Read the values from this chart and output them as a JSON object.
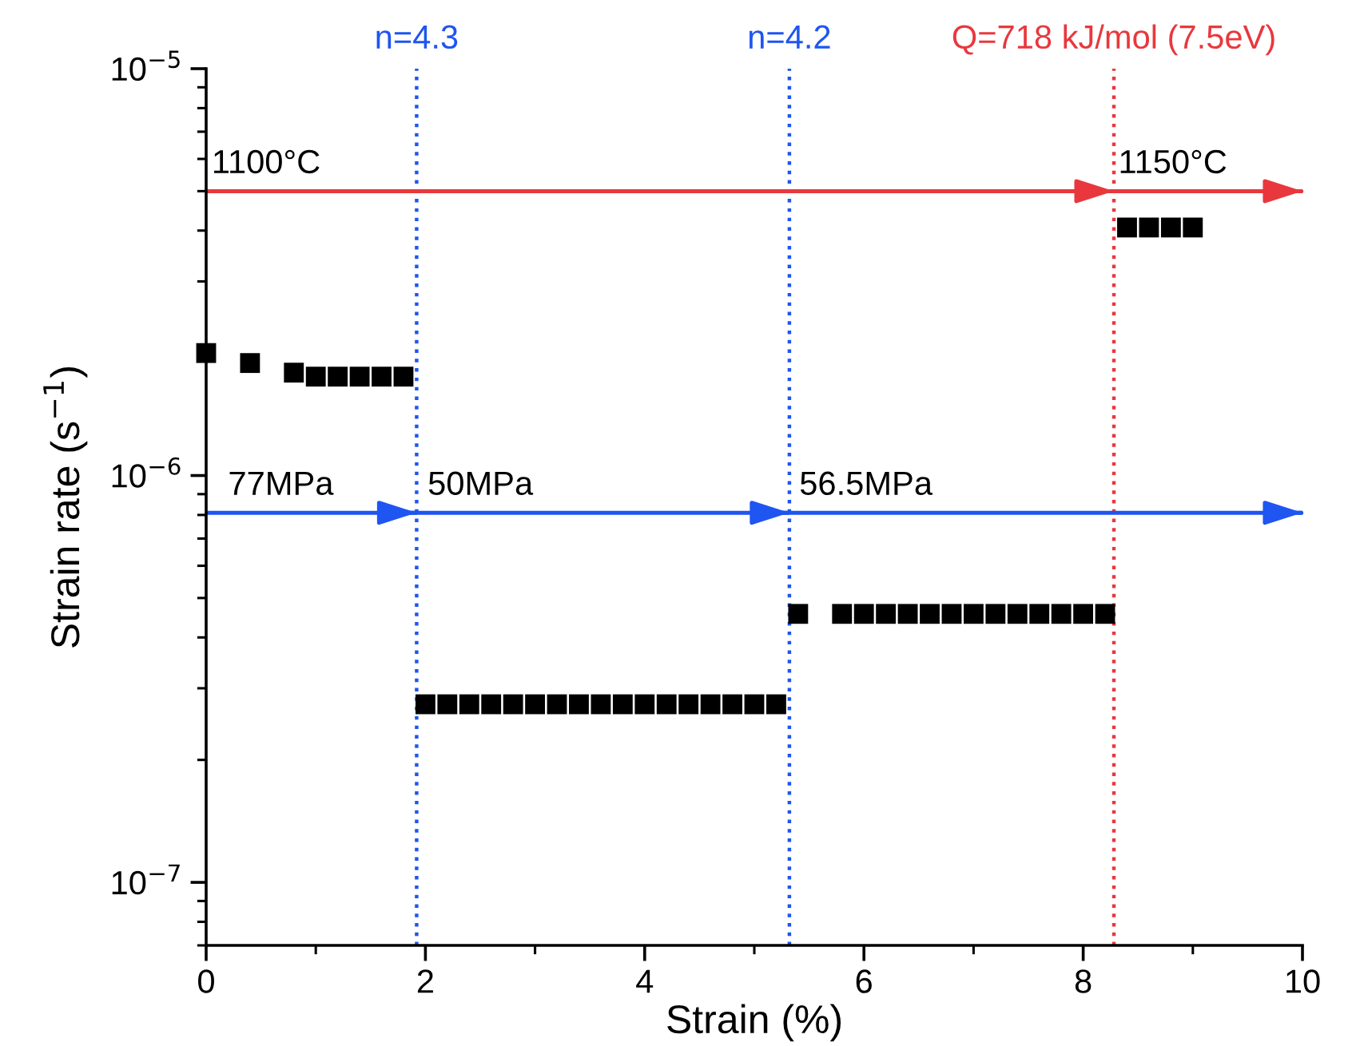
{
  "chart_data": {
    "type": "scatter",
    "xlabel": "Strain (%)",
    "ylabel": "Strain rate (s$^{−1}$)",
    "xlim": [
      0,
      10
    ],
    "xticks": [
      0,
      2,
      4,
      6,
      8,
      10
    ],
    "ylim": [
      7e-08,
      1e-05
    ],
    "log": "y",
    "yticks": [
      {
        "value": 1e-07,
        "label": "10$^{−7}$"
      },
      {
        "value": 1e-06,
        "label": "10$^{−6}$"
      },
      {
        "value": 1e-05,
        "label": "10$^{−5}$"
      }
    ],
    "grid": false,
    "legend": false,
    "marker": "square",
    "series": [
      {
        "color": "#000000",
        "x": [
          0,
          0.4,
          0.8,
          1.0,
          1.2,
          1.4,
          1.6,
          1.8,
          2.0,
          2.2,
          2.4,
          2.6,
          2.8,
          3.0,
          3.2,
          3.4,
          3.6,
          3.8,
          4.0,
          4.2,
          4.4,
          4.6,
          4.8,
          5.0,
          5.2,
          5.4,
          5.8,
          6.0,
          6.2,
          6.4,
          6.6,
          6.8,
          7.0,
          7.2,
          7.4,
          7.6,
          7.8,
          8.0,
          8.2,
          8.4,
          8.6,
          8.8,
          9.0
        ],
        "values": [
          2e-06,
          1.89e-06,
          1.79e-06,
          1.75e-06,
          1.75e-06,
          1.75e-06,
          1.75e-06,
          1.75e-06,
          2.74e-07,
          2.74e-07,
          2.74e-07,
          2.74e-07,
          2.74e-07,
          2.74e-07,
          2.74e-07,
          2.74e-07,
          2.74e-07,
          2.74e-07,
          2.74e-07,
          2.74e-07,
          2.74e-07,
          2.74e-07,
          2.74e-07,
          2.74e-07,
          2.74e-07,
          4.57e-07,
          4.57e-07,
          4.57e-07,
          4.57e-07,
          4.57e-07,
          4.57e-07,
          4.57e-07,
          4.57e-07,
          4.57e-07,
          4.57e-07,
          4.57e-07,
          4.57e-07,
          4.57e-07,
          4.57e-07,
          4.07e-06,
          4.07e-06,
          4.07e-06,
          4.07e-06
        ]
      },
      {
        "type": "line",
        "marker": "none",
        "color": "#e8383d",
        "x": [
          0,
          8.28,
          10
        ],
        "values": [
          5e-06,
          5e-06,
          5e-06
        ]
      },
      {
        "type": "line",
        "marker": "none",
        "color": "#1f55f0",
        "x": [
          0,
          1.92,
          5.32,
          10
        ],
        "values": [
          8.1e-07,
          8.1e-07,
          8.1e-07,
          8.1e-07
        ]
      }
    ],
    "ref_lines": [
      {
        "axis": "x",
        "value": 1.92,
        "color": "#1f55f0",
        "line_style": "dotted"
      },
      {
        "axis": "x",
        "value": 5.32,
        "color": "#1f55f0",
        "line_style": "dotted"
      },
      {
        "axis": "x",
        "value": 8.28,
        "color": "#e8383d",
        "line_style": "dotted"
      }
    ],
    "annotations": [
      {
        "text": "n=4.3",
        "x": 1.92,
        "y": 1e-05
      },
      {
        "text": "n=4.2",
        "x": 5.32,
        "y": 1e-05
      },
      {
        "text": "Q=718 kJ/mol (7.5eV)",
        "x": 8.28,
        "y": 1e-05
      },
      {
        "text": "1100°C",
        "x": 0.05,
        "y": 5e-06
      },
      {
        "text": "1150°C",
        "x": 8.32,
        "y": 5e-06
      },
      {
        "text": "77MPa",
        "x": 0.2,
        "y": 8.1e-07
      },
      {
        "text": "50MPa",
        "x": 2.02,
        "y": 8.1e-07
      },
      {
        "text": "56.5MPa",
        "x": 5.41,
        "y": 8.1e-07
      }
    ]
  }
}
